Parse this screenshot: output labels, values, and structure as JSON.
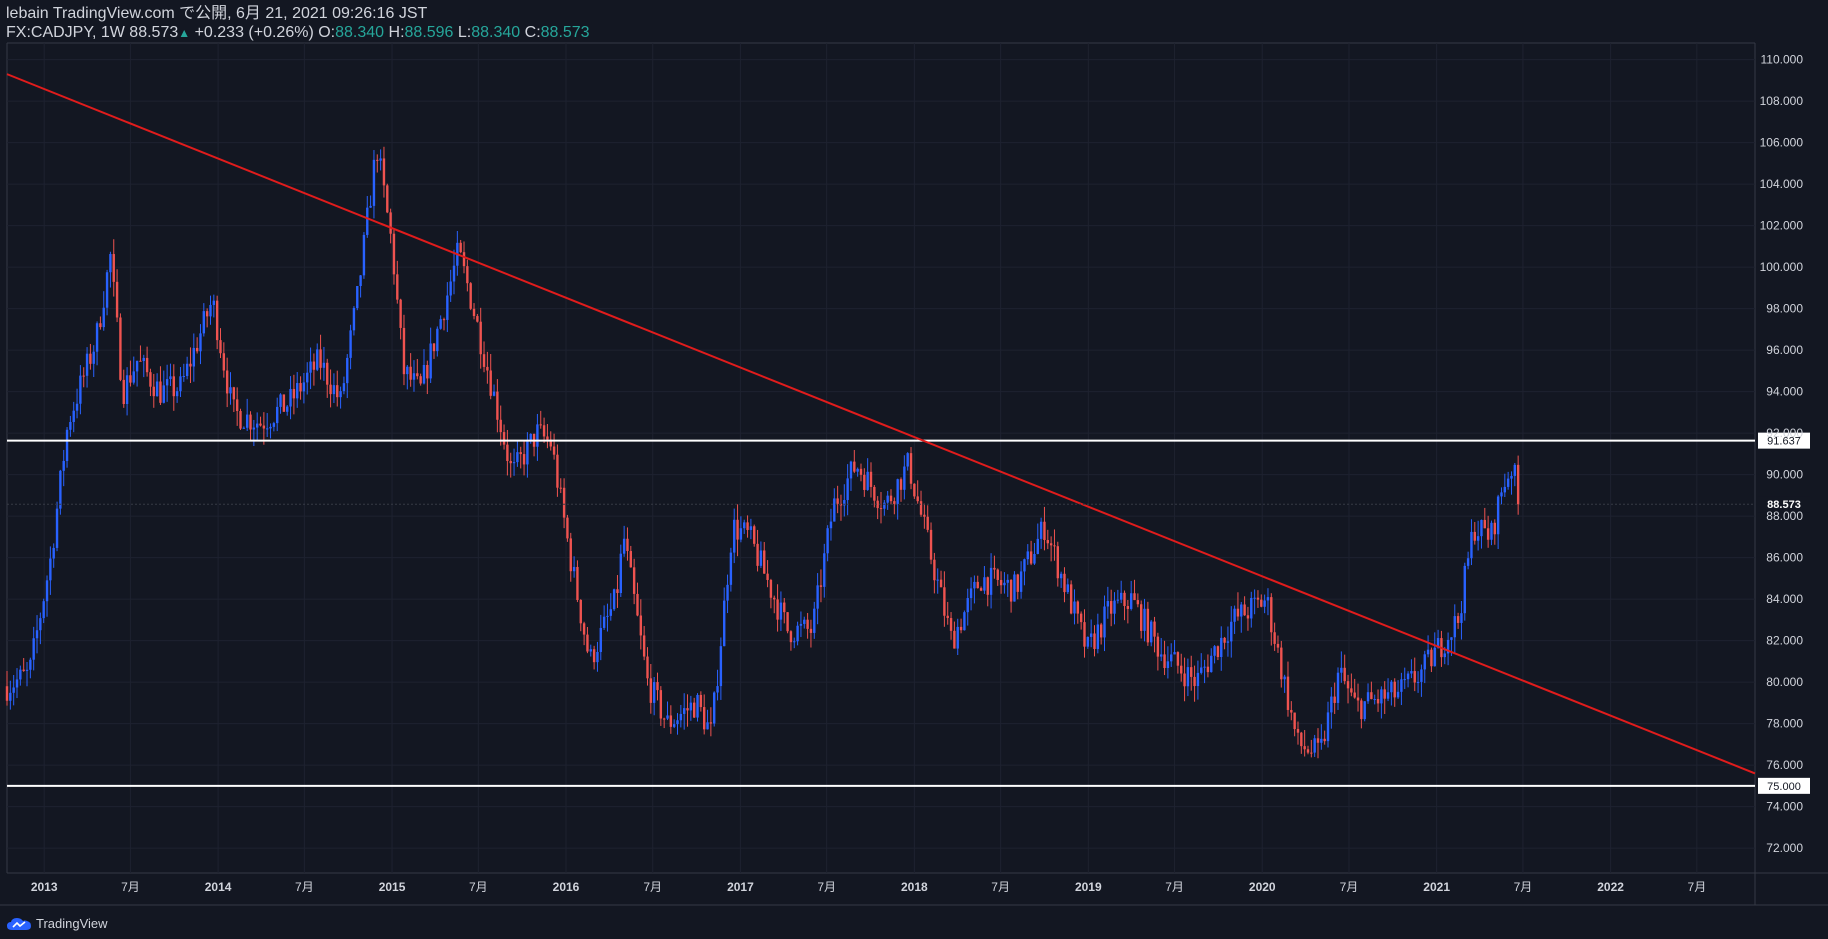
{
  "header": {
    "publish_line": "lebain TradingView.com で公開, 6月 21, 2021 09:26:16 JST",
    "symbol": "FX:CADJPY, 1W",
    "last": "88.573",
    "change": "+0.233 (+0.26%)",
    "o_label": "O:",
    "o_val": "88.340",
    "h_label": "H:",
    "h_val": "88.596",
    "l_label": "L:",
    "l_val": "88.340",
    "c_label": "C:",
    "c_val": "88.573"
  },
  "footer": {
    "brand": "TradingView"
  },
  "colors": {
    "background": "#131722",
    "up": "#2962ff",
    "down": "#ef5350",
    "trend": "#e01c1c",
    "level": "#ffffff",
    "text": "#d1d4dc",
    "grid": "#1e2230"
  },
  "chart_data": {
    "type": "candlestick",
    "ylim": [
      70.8,
      110.8
    ],
    "y_ticks": [
      72,
      74,
      76,
      78,
      80,
      82,
      84,
      86,
      88,
      90,
      92,
      94,
      96,
      98,
      100,
      102,
      104,
      106,
      108,
      110
    ],
    "y_tick_labels": [
      "72.000",
      "74.000",
      "76.000",
      "78.000",
      "80.000",
      "82.000",
      "84.000",
      "86.000",
      "88.000",
      "90.000",
      "92.000",
      "94.000",
      "96.000",
      "98.000",
      "100.000",
      "102.000",
      "104.000",
      "106.000",
      "108.000",
      "110.000"
    ],
    "x_range": [
      "2012-10-15",
      "2022-10-31"
    ],
    "x_ticks": [
      {
        "date": "2013-01-01",
        "label": "2013"
      },
      {
        "date": "2013-07-01",
        "label": "7月"
      },
      {
        "date": "2014-01-01",
        "label": "2014"
      },
      {
        "date": "2014-07-01",
        "label": "7月"
      },
      {
        "date": "2015-01-01",
        "label": "2015"
      },
      {
        "date": "2015-07-01",
        "label": "7月"
      },
      {
        "date": "2016-01-01",
        "label": "2016"
      },
      {
        "date": "2016-07-01",
        "label": "7月"
      },
      {
        "date": "2017-01-01",
        "label": "2017"
      },
      {
        "date": "2017-07-01",
        "label": "7月"
      },
      {
        "date": "2018-01-01",
        "label": "2018"
      },
      {
        "date": "2018-07-01",
        "label": "7月"
      },
      {
        "date": "2019-01-01",
        "label": "2019"
      },
      {
        "date": "2019-07-01",
        "label": "7月"
      },
      {
        "date": "2020-01-01",
        "label": "2020"
      },
      {
        "date": "2020-07-01",
        "label": "7月"
      },
      {
        "date": "2021-01-01",
        "label": "2021"
      },
      {
        "date": "2021-07-01",
        "label": "7月"
      },
      {
        "date": "2022-01-01",
        "label": "2022"
      },
      {
        "date": "2022-07-01",
        "label": "7月"
      }
    ],
    "key_points": [
      {
        "date": "2012-10-15",
        "price": 79.8
      },
      {
        "date": "2012-12-01",
        "price": 80.4
      },
      {
        "date": "2013-01-15",
        "price": 86
      },
      {
        "date": "2013-02-20",
        "price": 92.5
      },
      {
        "date": "2013-04-20",
        "price": 96.5
      },
      {
        "date": "2013-05-20",
        "price": 100.5
      },
      {
        "date": "2013-06-15",
        "price": 94
      },
      {
        "date": "2013-07-15",
        "price": 95.5
      },
      {
        "date": "2013-09-01",
        "price": 94
      },
      {
        "date": "2013-10-15",
        "price": 94.2
      },
      {
        "date": "2013-12-20",
        "price": 98.4
      },
      {
        "date": "2014-02-01",
        "price": 93
      },
      {
        "date": "2014-04-01",
        "price": 92.5
      },
      {
        "date": "2014-06-01",
        "price": 93.5
      },
      {
        "date": "2014-08-01",
        "price": 95.5
      },
      {
        "date": "2014-09-15",
        "price": 93.5
      },
      {
        "date": "2014-10-20",
        "price": 98.5
      },
      {
        "date": "2014-11-30",
        "price": 105.8
      },
      {
        "date": "2015-01-01",
        "price": 101
      },
      {
        "date": "2015-01-25",
        "price": 95
      },
      {
        "date": "2015-03-01",
        "price": 94
      },
      {
        "date": "2015-04-25",
        "price": 98.5
      },
      {
        "date": "2015-05-20",
        "price": 100.7
      },
      {
        "date": "2015-06-10",
        "price": 99
      },
      {
        "date": "2015-08-01",
        "price": 94
      },
      {
        "date": "2015-09-10",
        "price": 90
      },
      {
        "date": "2015-11-01",
        "price": 92
      },
      {
        "date": "2015-12-01",
        "price": 91.5
      },
      {
        "date": "2016-01-10",
        "price": 86
      },
      {
        "date": "2016-02-20",
        "price": 81
      },
      {
        "date": "2016-04-15",
        "price": 84
      },
      {
        "date": "2016-05-01",
        "price": 87
      },
      {
        "date": "2016-06-20",
        "price": 80
      },
      {
        "date": "2016-08-01",
        "price": 78
      },
      {
        "date": "2016-10-01",
        "price": 79
      },
      {
        "date": "2016-11-01",
        "price": 77.5
      },
      {
        "date": "2016-12-15",
        "price": 87.5
      },
      {
        "date": "2017-01-20",
        "price": 87
      },
      {
        "date": "2017-04-10",
        "price": 82.5
      },
      {
        "date": "2017-06-01",
        "price": 82.5
      },
      {
        "date": "2017-07-15",
        "price": 88.5
      },
      {
        "date": "2017-09-01",
        "price": 90.5
      },
      {
        "date": "2017-11-01",
        "price": 88.5
      },
      {
        "date": "2017-12-20",
        "price": 90.5
      },
      {
        "date": "2018-03-20",
        "price": 82
      },
      {
        "date": "2018-05-20",
        "price": 85
      },
      {
        "date": "2018-08-01",
        "price": 84.5
      },
      {
        "date": "2018-10-01",
        "price": 87.5
      },
      {
        "date": "2018-12-30",
        "price": 81.5
      },
      {
        "date": "2019-02-15",
        "price": 83.5
      },
      {
        "date": "2019-04-01",
        "price": 84
      },
      {
        "date": "2019-06-01",
        "price": 81.5
      },
      {
        "date": "2019-08-15",
        "price": 80
      },
      {
        "date": "2019-11-01",
        "price": 83
      },
      {
        "date": "2020-01-10",
        "price": 84
      },
      {
        "date": "2020-03-15",
        "price": 77
      },
      {
        "date": "2020-05-01",
        "price": 76.5
      },
      {
        "date": "2020-06-10",
        "price": 80.5
      },
      {
        "date": "2020-07-15",
        "price": 78.8
      },
      {
        "date": "2020-10-15",
        "price": 79.5
      },
      {
        "date": "2020-12-01",
        "price": 80.5
      },
      {
        "date": "2021-02-15",
        "price": 83
      },
      {
        "date": "2021-03-20",
        "price": 87.5
      },
      {
        "date": "2021-04-25",
        "price": 87
      },
      {
        "date": "2021-05-20",
        "price": 89.5
      },
      {
        "date": "2021-06-10",
        "price": 90.5
      },
      {
        "date": "2021-06-21",
        "price": 88.57
      }
    ],
    "horizontal_lines": [
      {
        "price": 91.637,
        "label": "91.637"
      },
      {
        "price": 75.0,
        "label": "75.000"
      }
    ],
    "trendline": {
      "from": {
        "date": "2012-10-15",
        "price": 109.3
      },
      "to": {
        "date": "2022-10-31",
        "price": 75.6
      }
    },
    "last_price": {
      "price": 88.573,
      "label": "88.573"
    }
  }
}
